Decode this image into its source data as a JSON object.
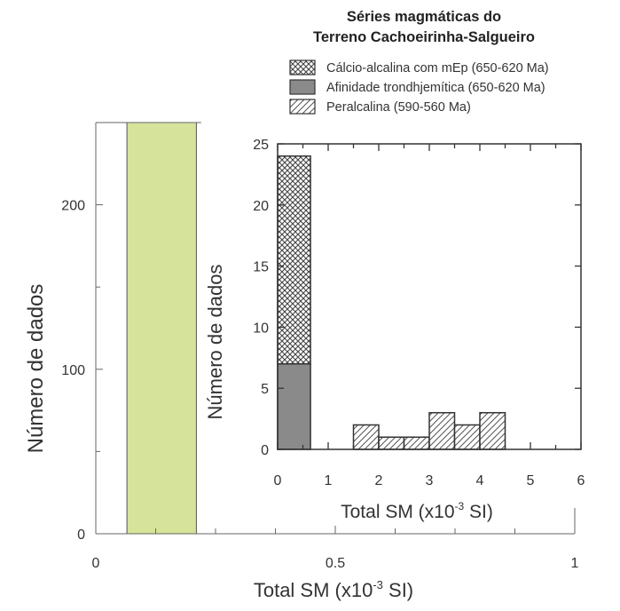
{
  "chart_data": [
    {
      "type": "bar",
      "name": "outer",
      "xlabel": "Total SM (x10",
      "xlabel_sup": "-3",
      "xlabel_end": " SI)",
      "ylabel": "Número de dados",
      "xlim": [
        0,
        1
      ],
      "ylim": [
        0,
        250
      ],
      "x_ticks": [
        "0",
        "0.5",
        "1"
      ],
      "y_ticks": [
        "0",
        "100",
        "200"
      ],
      "bars": [
        {
          "x0": 0.065,
          "x1": 0.21,
          "value": 250,
          "color": "#d5e49a"
        }
      ]
    },
    {
      "type": "bar",
      "name": "inset",
      "title": [
        "Séries magmáticas do",
        "Terreno Cachoeirinha-Salgueiro"
      ],
      "xlabel": "Total SM (x10",
      "xlabel_sup": "-3",
      "xlabel_end": " SI)",
      "ylabel": "Número de dados",
      "xlim": [
        0,
        6
      ],
      "ylim": [
        0,
        25
      ],
      "x_ticks": [
        "0",
        "1",
        "2",
        "3",
        "4",
        "5",
        "6"
      ],
      "y_ticks": [
        "0",
        "5",
        "10",
        "15",
        "20",
        "25"
      ],
      "series": [
        {
          "name": "Afinidade trondhjemítica (650-620 Ma)",
          "pattern": "gray",
          "bins": [
            {
              "x0": 0,
              "x1": 0.65,
              "value": 7
            }
          ]
        },
        {
          "name": "Cálcio-alcalina com mEp (650-620 Ma)",
          "pattern": "crosshatch",
          "bins": [
            {
              "x0": 0,
              "x1": 0.65,
              "value": 17,
              "stacked_on": 7
            }
          ]
        },
        {
          "name": "Peralcalina (590-560 Ma)",
          "pattern": "diagonal",
          "bins": [
            {
              "x0": 1.5,
              "x1": 2.0,
              "value": 2
            },
            {
              "x0": 2.0,
              "x1": 2.5,
              "value": 1
            },
            {
              "x0": 2.5,
              "x1": 3.0,
              "value": 1
            },
            {
              "x0": 3.0,
              "x1": 3.5,
              "value": 3
            },
            {
              "x0": 3.5,
              "x1": 4.0,
              "value": 2
            },
            {
              "x0": 4.0,
              "x1": 4.5,
              "value": 3
            }
          ]
        }
      ],
      "legend": [
        {
          "label": "Cálcio-alcalina com mEp (650-620 Ma)",
          "pattern": "crosshatch"
        },
        {
          "label": "Afinidade trondhjemítica (650-620 Ma)",
          "pattern": "gray"
        },
        {
          "label": "Peralcalina (590-560 Ma)",
          "pattern": "diagonal"
        }
      ]
    }
  ]
}
